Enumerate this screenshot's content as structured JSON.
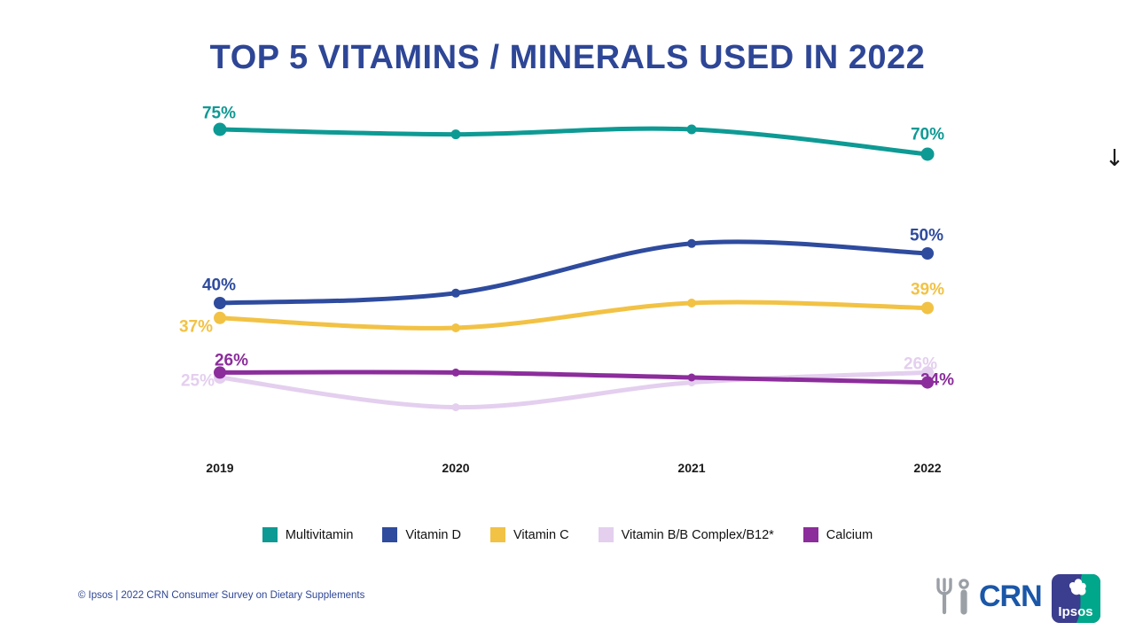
{
  "title": "TOP 5 VITAMINS / MINERALS USED IN 2022",
  "chart_data": {
    "type": "line",
    "x": [
      "2019",
      "2020",
      "2021",
      "2022"
    ],
    "series": [
      {
        "name": "Multivitamin",
        "color": "#0E9A94",
        "values": [
          75,
          74,
          75,
          70
        ],
        "first_label": "75%",
        "last_label": "70%"
      },
      {
        "name": "Vitamin D",
        "color": "#2E4B9E",
        "values": [
          40,
          42,
          52,
          50
        ],
        "first_label": "40%",
        "last_label": "50%"
      },
      {
        "name": "Vitamin C",
        "color": "#F2C245",
        "values": [
          37,
          35,
          40,
          39
        ],
        "first_label": "37%",
        "last_label": "39%"
      },
      {
        "name": "Vitamin B/B Complex/B12*",
        "color": "#E4CFEF",
        "values": [
          25,
          19,
          24,
          26
        ],
        "first_label": "25%",
        "last_label": "26%"
      },
      {
        "name": "Calcium",
        "color": "#8C2D9C",
        "values": [
          26,
          26,
          25,
          24
        ],
        "first_label": "26%",
        "last_label": "24%"
      }
    ],
    "ylabel": "",
    "xlabel": "",
    "ylim": [
      15,
      80
    ],
    "grid": false,
    "legend_position": "bottom",
    "significance_arrow": "↓"
  },
  "footer": {
    "source": "© Ipsos | 2022 CRN Consumer Survey on Dietary Supplements"
  },
  "logos": {
    "crn_text": "CRN",
    "ipsos_text": "Ipsos"
  }
}
